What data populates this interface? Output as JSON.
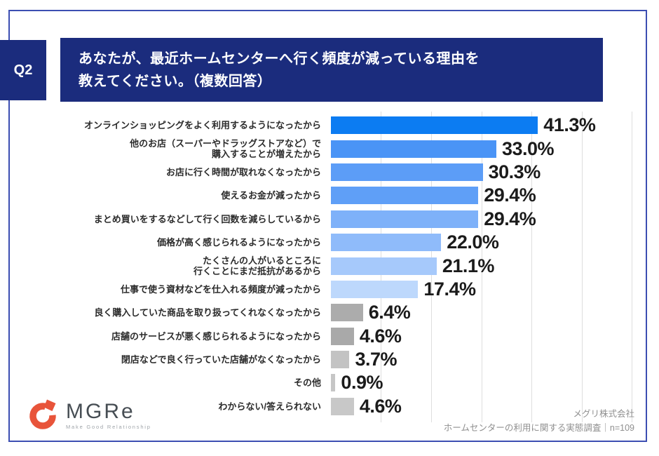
{
  "header": {
    "q_label": "Q2",
    "title": "あなたが、最近ホームセンターへ行く頻度が減っている理由を\n教えてください。（複数回答）"
  },
  "chart_data": {
    "type": "bar",
    "orientation": "horizontal",
    "title": "ホームセンターへ行く頻度が減っている理由",
    "categories": [
      "オンラインショッピングをよく利用するようになったから",
      "他のお店（スーパーやドラッグストアなど）で\n購入することが増えたから",
      "お店に行く時間が取れなくなったから",
      "使えるお金が減ったから",
      "まとめ買いをするなどして行く回数を減らしているから",
      "価格が高く感じられるようになったから",
      "たくさんの人がいるところに\n行くことにまだ抵抗があるから",
      "仕事で使う資材などを仕入れる頻度が減ったから",
      "良く購入していた商品を取り扱ってくれなくなったから",
      "店舗のサービスが悪く感じられるようになったから",
      "閉店などで良く行っていた店舗がなくなったから",
      "その他",
      "わからない/答えられない"
    ],
    "values": [
      41.3,
      33.0,
      30.3,
      29.4,
      29.4,
      22.0,
      21.1,
      17.4,
      6.4,
      4.6,
      3.7,
      0.9,
      4.6
    ],
    "value_labels": [
      "41.3%",
      "33.0%",
      "30.3%",
      "29.4%",
      "29.4%",
      "22.0%",
      "21.1%",
      "17.4%",
      "6.4%",
      "4.6%",
      "3.7%",
      "0.9%",
      "4.6%"
    ],
    "bar_colors": [
      "#0C7CF2",
      "#4A94F6",
      "#5C9DF7",
      "#5F9FF7",
      "#7EB1F9",
      "#8FBBFA",
      "#A6C9FB",
      "#BDD8FC",
      "#ACACAC",
      "#A9A9A9",
      "#C3C3C3",
      "#C6C6C6",
      "#C8C8C8"
    ],
    "xlim": [
      0,
      60
    ],
    "gridline_interval": 10,
    "grid": true,
    "legend": "none",
    "value_label_position": "end-of-bar"
  },
  "footer": {
    "company": "メグリ株式会社",
    "survey": "ホームセンターの利用に関する実態調査｜n=109"
  },
  "logo": {
    "text": "MGRe",
    "tagline": "Make Good Relationship",
    "accent_color": "#E8543A"
  },
  "colors": {
    "banner_bg": "#1B2C7D",
    "card_border": "#3C4EB2",
    "gridline": "#DEDEDE",
    "category_text": "#2B2B2B",
    "value_text": "#1B1B1B",
    "footer_text": "#8F8F8F"
  }
}
